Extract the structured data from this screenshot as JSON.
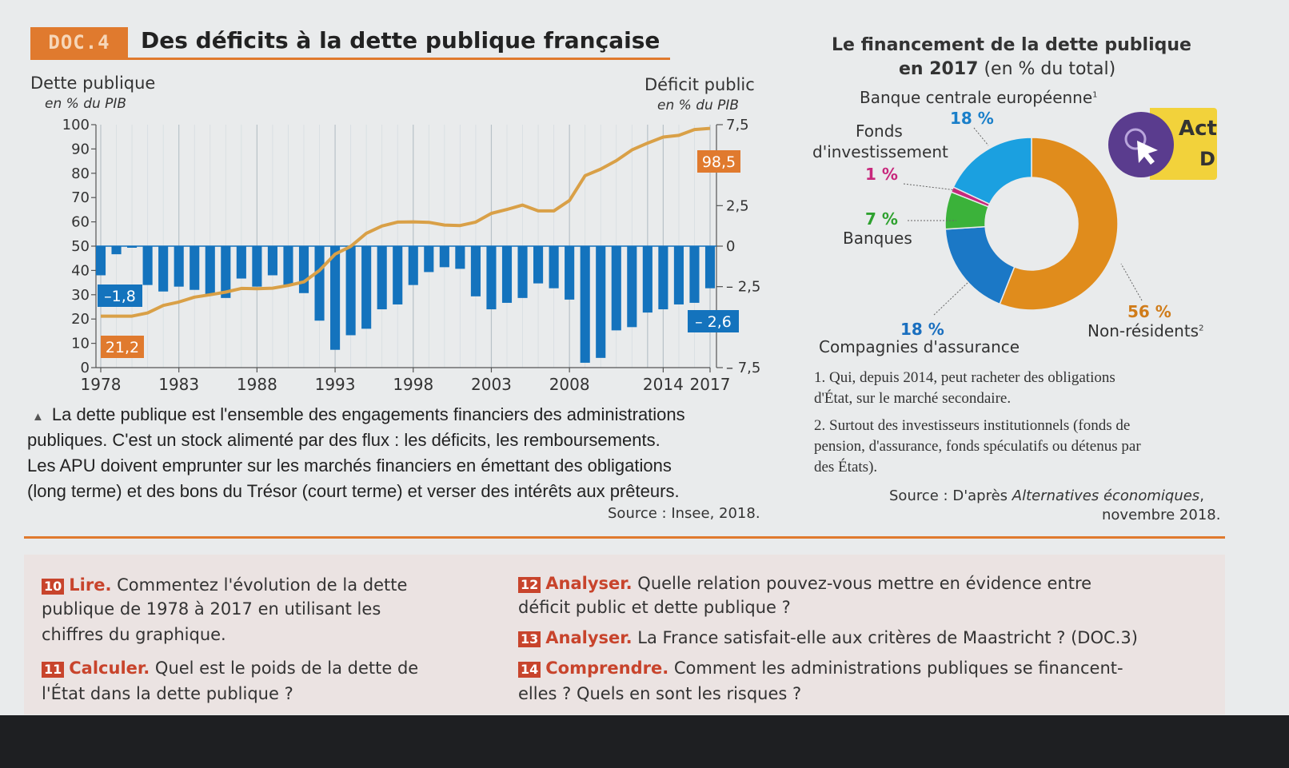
{
  "header": {
    "doc_tag": "DOC.4",
    "title": "Des déficits à la dette publique française"
  },
  "line_chart": {
    "y_left_title": "Dette publique",
    "y_left_unit": "en % du PIB",
    "y_right_title": "Déficit public",
    "y_right_unit": "en % du PIB",
    "left_ticks": [
      "0",
      "10",
      "20",
      "30",
      "40",
      "50",
      "60",
      "70",
      "80",
      "90",
      "100"
    ],
    "right_ticks": [
      "7,5",
      "2,5",
      "0",
      "– 2,5",
      "– 7,5"
    ],
    "x_ticks": [
      "1978",
      "1983",
      "1988",
      "1993",
      "1998",
      "2003",
      "2008",
      "2014",
      "2017"
    ],
    "callouts": {
      "debt_start": "21,2",
      "debt_end": "98,5",
      "deficit_start": "–1,8",
      "deficit_end": "– 2,6"
    }
  },
  "caption": {
    "line1": "La dette publique est l'ensemble des engagements financiers des administrations",
    "line2": "publiques. C'est un stock alimenté par des flux : les déficits, les remboursements.",
    "line3": "Les APU doivent emprunter sur les marchés financiers en émettant des obligations",
    "line4": "(long terme) et des bons du Trésor (court terme) et verser des intérêts aux prêteurs.",
    "source": "Source : Insee, 2018."
  },
  "donut_chart": {
    "title_line1": "Le financement de la dette publique",
    "title_line2_bold": "en 2017",
    "title_line2_rest": " (en % du total)",
    "labels": {
      "bce": "Banque centrale européenne",
      "bce_sup": "1",
      "bce_pct": "18 %",
      "fonds_1": "Fonds",
      "fonds_2": "d'investissement",
      "fonds_pct": "1 %",
      "banques_pct": "7 %",
      "banques": "Banques",
      "assur_pct": "18 %",
      "assur": "Compagnies d'assurance",
      "nonres_pct": "56 %",
      "nonres": "Non-résidents",
      "nonres_sup": "2"
    },
    "notes": {
      "n1a": "1. Qui, depuis 2014, peut racheter des obligations",
      "n1b": "d'État, sur le marché secondaire.",
      "n2a": "2. Surtout des investisseurs institutionnels (fonds de",
      "n2b": "pension, d'assurance, fonds spéculatifs ou détenus par",
      "n2c": "des États)."
    },
    "source_prefix": "Source : D'après ",
    "source_italic": "Alternatives économiques",
    "source_suffix": ",",
    "source_line2": "novembre 2018."
  },
  "act_badge": {
    "line1": "Act",
    "line2": "D"
  },
  "questions": {
    "q10_num": "10",
    "q10_verb": "Lire.",
    "q10_a": " Commentez l'évolution de la dette",
    "q10_b": "publique de 1978 à 2017 en utilisant les",
    "q10_c": "chiffres du graphique.",
    "q11_num": "11",
    "q11_verb": "Calculer.",
    "q11_a": " Quel est le poids de la dette de",
    "q11_b": "l'État dans la dette publique ?",
    "q12_num": "12",
    "q12_verb": "Analyser.",
    "q12_a": " Quelle relation pouvez-vous mettre en évidence entre",
    "q12_b": "déficit public et dette publique ?",
    "q13_num": "13",
    "q13_verb": "Analyser.",
    "q13_a": " La France satisfait-elle aux critères de Maastricht ? (DOC.3)",
    "q14_num": "14",
    "q14_verb": "Comprendre.",
    "q14_a": " Comment les administrations publiques se financent-",
    "q14_b": "elles ? Quels en sont les risques ?"
  },
  "chart_data": [
    {
      "type": "bar+line",
      "x": [
        1978,
        1979,
        1980,
        1981,
        1982,
        1983,
        1984,
        1985,
        1986,
        1987,
        1988,
        1989,
        1990,
        1991,
        1992,
        1993,
        1994,
        1995,
        1996,
        1997,
        1998,
        1999,
        2000,
        2001,
        2002,
        2003,
        2004,
        2005,
        2006,
        2007,
        2008,
        2009,
        2010,
        2011,
        2012,
        2013,
        2014,
        2015,
        2016,
        2017
      ],
      "series": [
        {
          "name": "Dette publique",
          "axis": "left",
          "unit": "% du PIB",
          "values": [
            21.2,
            21.2,
            21.2,
            22.5,
            25.6,
            27.0,
            29.0,
            30.0,
            31.1,
            32.6,
            32.5,
            32.7,
            33.8,
            35.3,
            40.0,
            46.7,
            49.9,
            55.3,
            58.3,
            59.9,
            60.0,
            59.8,
            58.7,
            58.5,
            59.9,
            63.5,
            65.1,
            66.9,
            64.5,
            64.5,
            68.8,
            79.0,
            81.7,
            85.2,
            89.6,
            92.4,
            94.9,
            95.6,
            98.0,
            98.5
          ]
        },
        {
          "name": "Déficit public",
          "axis": "right",
          "unit": "% du PIB",
          "values": [
            -1.8,
            -0.5,
            0.0,
            -2.4,
            -2.8,
            -2.5,
            -2.7,
            -3.0,
            -3.2,
            -2.0,
            -2.5,
            -1.8,
            -2.4,
            -2.9,
            -4.6,
            -6.4,
            -5.5,
            -5.1,
            -3.9,
            -3.6,
            -2.4,
            -1.6,
            -1.3,
            -1.4,
            -3.1,
            -3.9,
            -3.5,
            -3.2,
            -2.3,
            -2.6,
            -3.3,
            -7.2,
            -6.9,
            -5.2,
            -5.0,
            -4.1,
            -3.9,
            -3.6,
            -3.5,
            -2.6
          ]
        }
      ],
      "xlabel": "",
      "ylim_left": [
        0,
        100
      ],
      "ylim_right": [
        -7.5,
        7.5
      ]
    },
    {
      "type": "pie",
      "title": "Le financement de la dette publique en 2017 (en % du total)",
      "categories": [
        "Non-résidents",
        "Compagnies d'assurance",
        "Banques",
        "Fonds d'investissement",
        "Banque centrale européenne"
      ],
      "values": [
        56,
        18,
        7,
        1,
        18
      ],
      "colors": [
        "#e08c1c",
        "#1b78c6",
        "#3bb23a",
        "#c8287c",
        "#1ba0e0"
      ]
    }
  ]
}
